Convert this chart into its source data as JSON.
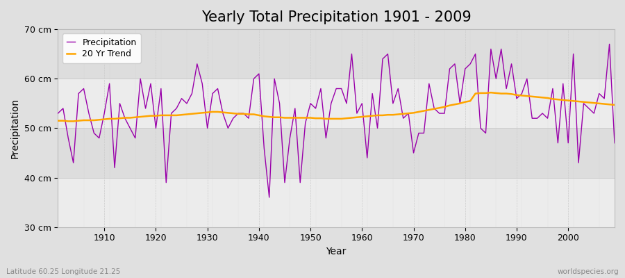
{
  "title": "Yearly Total Precipitation 1901 - 2009",
  "xlabel": "Year",
  "ylabel": "Precipitation",
  "lat_lon_label": "Latitude 60.25 Longitude 21.25",
  "watermark": "worldspecies.org",
  "years": [
    1901,
    1902,
    1903,
    1904,
    1905,
    1906,
    1907,
    1908,
    1909,
    1910,
    1911,
    1912,
    1913,
    1914,
    1915,
    1916,
    1917,
    1918,
    1919,
    1920,
    1921,
    1922,
    1923,
    1924,
    1925,
    1926,
    1927,
    1928,
    1929,
    1930,
    1931,
    1932,
    1933,
    1934,
    1935,
    1936,
    1937,
    1938,
    1939,
    1940,
    1941,
    1942,
    1943,
    1944,
    1945,
    1946,
    1947,
    1948,
    1949,
    1950,
    1951,
    1952,
    1953,
    1954,
    1955,
    1956,
    1957,
    1958,
    1959,
    1960,
    1961,
    1962,
    1963,
    1964,
    1965,
    1966,
    1967,
    1968,
    1969,
    1970,
    1971,
    1972,
    1973,
    1974,
    1975,
    1976,
    1977,
    1978,
    1979,
    1980,
    1981,
    1982,
    1983,
    1984,
    1985,
    1986,
    1987,
    1988,
    1989,
    1990,
    1991,
    1992,
    1993,
    1994,
    1995,
    1996,
    1997,
    1998,
    1999,
    2000,
    2001,
    2002,
    2003,
    2004,
    2005,
    2006,
    2007,
    2008,
    2009
  ],
  "precip": [
    53,
    54,
    48,
    43,
    57,
    58,
    53,
    49,
    48,
    53,
    59,
    42,
    55,
    52,
    50,
    48,
    60,
    54,
    59,
    50,
    58,
    39,
    53,
    54,
    56,
    55,
    57,
    63,
    59,
    50,
    57,
    58,
    53,
    50,
    52,
    53,
    53,
    52,
    60,
    61,
    46,
    36,
    60,
    55,
    39,
    48,
    54,
    39,
    51,
    55,
    54,
    58,
    48,
    55,
    58,
    58,
    55,
    65,
    53,
    55,
    44,
    57,
    50,
    64,
    65,
    55,
    58,
    52,
    53,
    45,
    49,
    49,
    59,
    54,
    53,
    53,
    62,
    63,
    55,
    62,
    63,
    65,
    50,
    49,
    66,
    60,
    66,
    58,
    63,
    56,
    57,
    60,
    52,
    52,
    53,
    52,
    58,
    47,
    59,
    47,
    65,
    43,
    55,
    54,
    53,
    57,
    56,
    67,
    47
  ],
  "trend": [
    51.5,
    51.5,
    51.4,
    51.4,
    51.5,
    51.6,
    51.6,
    51.6,
    51.7,
    51.8,
    51.9,
    51.9,
    52.0,
    52.1,
    52.1,
    52.2,
    52.3,
    52.4,
    52.5,
    52.5,
    52.6,
    52.6,
    52.6,
    52.6,
    52.7,
    52.8,
    52.9,
    53.0,
    53.1,
    53.2,
    53.3,
    53.3,
    53.2,
    53.1,
    53.0,
    52.9,
    52.9,
    52.8,
    52.8,
    52.6,
    52.4,
    52.3,
    52.2,
    52.2,
    52.1,
    52.1,
    52.1,
    52.1,
    52.1,
    52.1,
    52.0,
    52.0,
    51.9,
    51.9,
    51.9,
    51.9,
    52.0,
    52.1,
    52.2,
    52.3,
    52.4,
    52.5,
    52.6,
    52.6,
    52.7,
    52.7,
    52.8,
    52.9,
    53.0,
    53.1,
    53.3,
    53.5,
    53.7,
    53.9,
    54.1,
    54.3,
    54.6,
    54.8,
    55.0,
    55.3,
    55.5,
    57.0,
    57.1,
    57.1,
    57.2,
    57.1,
    57.0,
    57.0,
    56.9,
    56.7,
    56.6,
    56.5,
    56.4,
    56.3,
    56.2,
    56.1,
    55.9,
    55.8,
    55.7,
    55.6,
    55.5,
    55.4,
    55.3,
    55.2,
    55.1,
    55.0,
    54.9,
    54.8,
    54.7
  ],
  "precip_color": "#9900AA",
  "trend_color": "#FFA500",
  "bg_color": "#e0e0e0",
  "plot_bg_color": "#e8e8e8",
  "band_light": "#ececec",
  "band_dark": "#dddddd",
  "grid_color": "#cccccc",
  "ylim": [
    30,
    70
  ],
  "ytick_values": [
    30,
    40,
    50,
    60,
    70
  ],
  "ytick_labels": [
    "30 cm",
    "40 cm",
    "50 cm",
    "60 cm",
    "70 cm"
  ],
  "xtick_values": [
    1910,
    1920,
    1930,
    1940,
    1950,
    1960,
    1970,
    1980,
    1990,
    2000
  ],
  "title_fontsize": 15,
  "axis_fontsize": 10,
  "tick_fontsize": 9,
  "legend_fontsize": 9
}
